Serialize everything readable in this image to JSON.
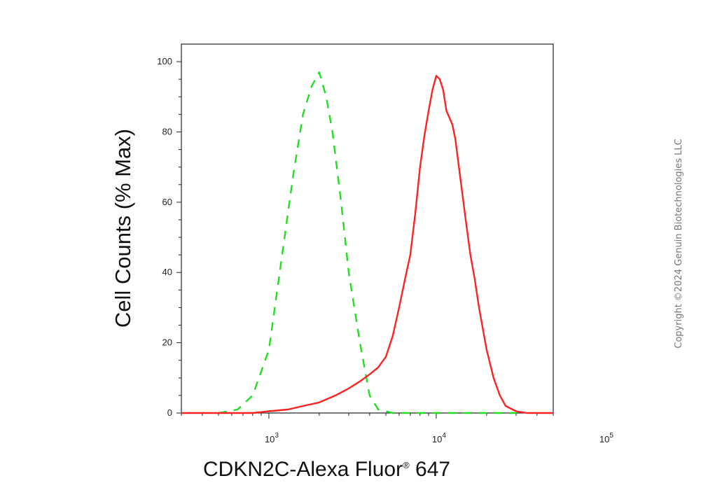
{
  "chart_data": {
    "type": "line",
    "xlabel": "CDKN2C-Alexa Fluor",
    "xlabel_mark": "®",
    "xlabel_suffix": " 647",
    "ylabel": "Cell Counts (% Max)",
    "x_scale": "log",
    "xlim": [
      300,
      50000
    ],
    "ylim": [
      0,
      105
    ],
    "y_ticks": [
      0,
      20,
      40,
      60,
      80,
      100
    ],
    "x_ticks": [
      {
        "value": 1000,
        "base": "10",
        "exp": "3"
      },
      {
        "value": 10000,
        "base": "10",
        "exp": "4"
      },
      {
        "value": 100000,
        "base": "10",
        "exp": "5"
      }
    ],
    "grid": false,
    "series": [
      {
        "color": "#22dd22",
        "dash": "dashed",
        "x": [
          500,
          650,
          800,
          1000,
          1200,
          1400,
          1600,
          1800,
          2000,
          2200,
          2400,
          2700,
          3000,
          3500,
          4000,
          4500,
          5500,
          8000,
          15000,
          30000
        ],
        "y": [
          0,
          1,
          5,
          18,
          45,
          68,
          85,
          93,
          97,
          90,
          80,
          60,
          40,
          20,
          5,
          1,
          0,
          0,
          0,
          0
        ]
      },
      {
        "color": "#ff2222",
        "dash": "solid",
        "x": [
          300,
          800,
          1000,
          1300,
          1600,
          2000,
          2500,
          3000,
          3500,
          4000,
          4500,
          5000,
          5500,
          6000,
          6500,
          7000,
          7500,
          8000,
          8500,
          9000,
          9500,
          10000,
          10500,
          11000,
          11500,
          12000,
          12500,
          13000,
          14000,
          15000,
          16000,
          17000,
          18000,
          20000,
          22000,
          24000,
          26000,
          30000,
          35000,
          40000,
          50000
        ],
        "y": [
          0,
          0,
          0.5,
          1,
          2,
          3,
          5,
          7,
          9,
          11,
          13,
          16,
          22,
          30,
          38,
          45,
          57,
          70,
          79,
          86,
          92,
          96,
          95,
          92,
          86,
          84,
          82,
          78,
          66,
          55,
          45,
          38,
          30,
          18,
          10,
          5,
          2,
          0.5,
          0,
          0,
          0
        ]
      }
    ]
  },
  "copyright": "Copyright ©2024 Genuin Biotechnologies LLC",
  "colors": {
    "axis": "#222222",
    "isotype_control": "#22dd22",
    "sample": "#ff2222"
  }
}
